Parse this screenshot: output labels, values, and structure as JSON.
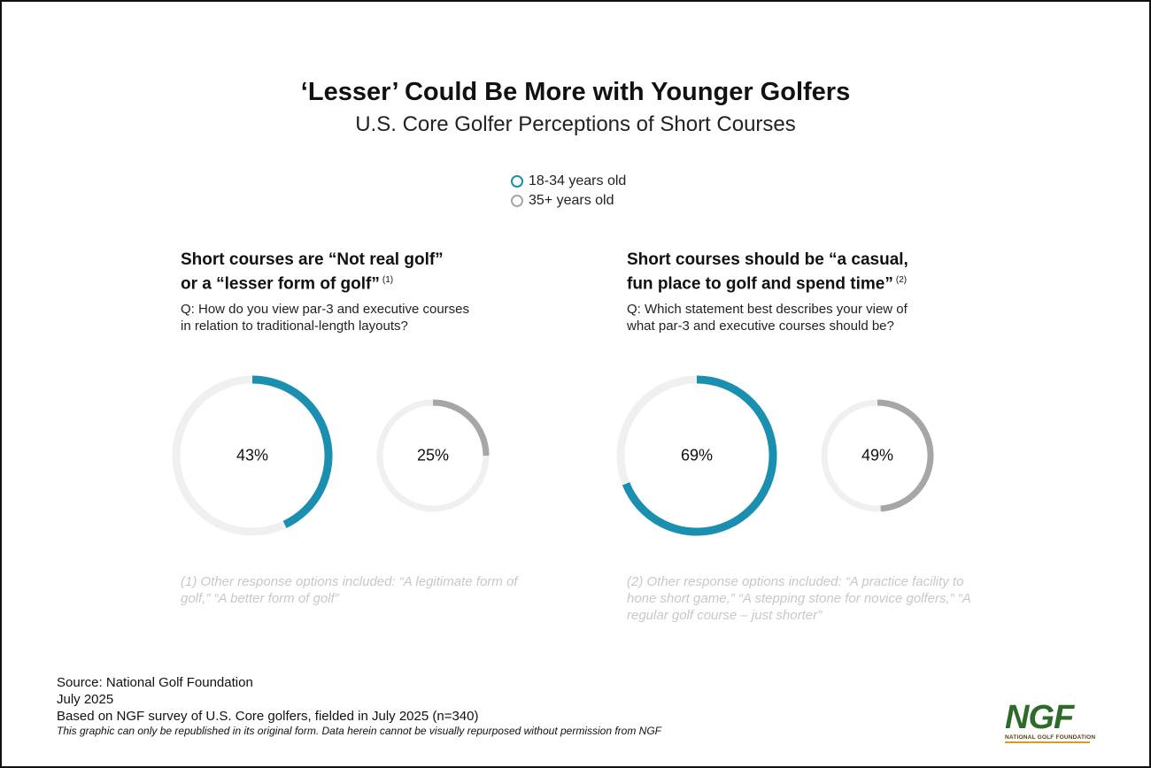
{
  "title": "‘Lesser’ Could Be More with Younger Golfers",
  "subtitle": "U.S. Core Golfer Perceptions of Short Courses",
  "colors": {
    "young": "#1a8fb0",
    "old": "#a6a6a6",
    "track": "#f0f0f0"
  },
  "chart_data": [
    {
      "type": "donut",
      "title": "Short courses are “Not real golf” or a “lesser form of golf”",
      "series": [
        {
          "name": "18-34 years old",
          "value": 43
        },
        {
          "name": "35+ years old",
          "value": 25
        }
      ]
    },
    {
      "type": "donut",
      "title": "Short courses should be “a casual, fun place to golf and spend time”",
      "series": [
        {
          "name": "18-34 years old",
          "value": 69
        },
        {
          "name": "35+ years old",
          "value": 49
        }
      ]
    }
  ],
  "legend": {
    "young": "18-34 years old",
    "old": "35+ years old"
  },
  "panels": [
    {
      "title_line1": "Short courses are “Not real golf”",
      "title_line2": "or a “lesser form of golf”",
      "footnote_mark": "(1)",
      "question": "Q: How do you view par-3 and executive courses in relation to traditional-length layouts?",
      "young_label": "43%",
      "old_label": "25%",
      "footnote": "(1) Other response options included: “A legitimate form of golf,” “A better form of golf”"
    },
    {
      "title_line1": "Short courses should be “a casual,",
      "title_line2": "fun place to golf and spend time”",
      "footnote_mark": "(2)",
      "question": "Q: Which statement best describes your view of what par-3 and executive courses should be?",
      "young_label": "69%",
      "old_label": "49%",
      "footnote": "(2) Other response options included: “A practice facility to hone short game,” “A stepping stone for novice golfers,” “A regular golf course – just shorter”"
    }
  ],
  "source": {
    "line1": "Source: National Golf Foundation",
    "line2": "July 2025",
    "line3": "Based on NGF survey of U.S. Core golfers, fielded in July 2025 (n=340)",
    "line4": "This graphic can only be republished in its original form. Data herein cannot be visually repurposed without permission from NGF"
  },
  "logo": {
    "text": "NGF",
    "sub": "NATIONAL GOLF FOUNDATION"
  }
}
